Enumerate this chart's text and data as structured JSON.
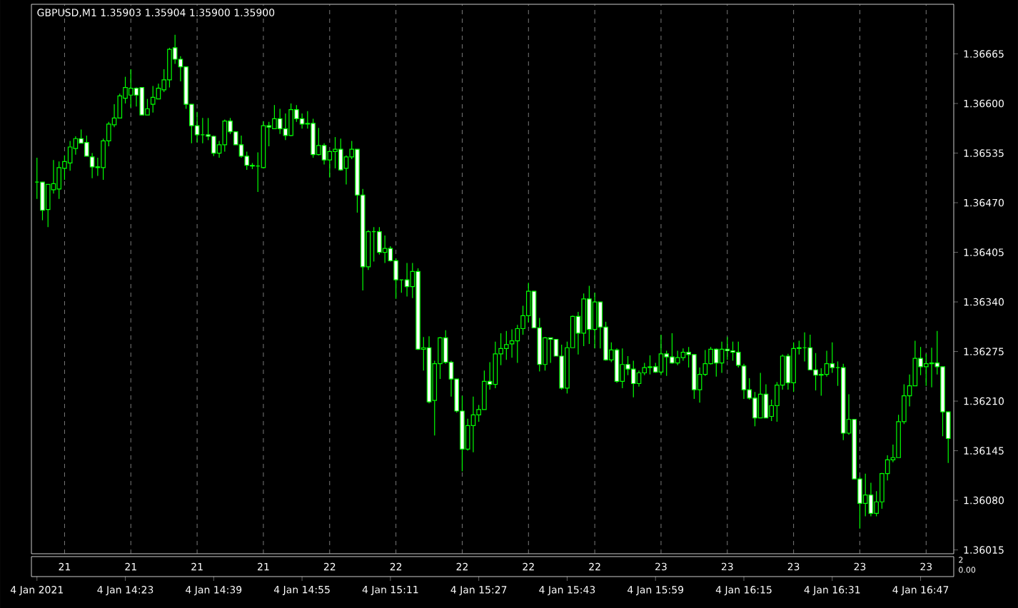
{
  "chart_data": {
    "type": "candlestick",
    "title": "GBPUSD,M1  1.35903 1.35904 1.35900 1.35900",
    "color": "#00ff00",
    "grid": "x",
    "xlim": [
      "2021-01-04T14:06",
      "2021-01-04T16:53"
    ],
    "ylim": [
      1.3601,
      1.3673
    ],
    "yticks": [
      1.36015,
      {
        "value": 1.3608,
        "label": "1.36080"
      },
      1.36145,
      {
        "value": 1.3621,
        "label": "1.36210"
      },
      1.36275,
      {
        "value": 1.3634,
        "label": "1.36340"
      },
      1.36405,
      {
        "value": 1.3647,
        "label": "1.36470"
      },
      1.36535,
      {
        "value": 1.366,
        "label": "1.36600"
      },
      1.36665
    ],
    "xticks": [
      {
        "value": "2021-01-04T14:07",
        "label": "4 Jan 2021"
      },
      {
        "value": "2021-01-04T14:23",
        "label": "4 Jan 14:23"
      },
      {
        "value": "2021-01-04T14:39",
        "label": "4 Jan 14:39"
      },
      {
        "value": "2021-01-04T14:55",
        "label": "4 Jan 14:55"
      },
      {
        "value": "2021-01-04T15:11",
        "label": "4 Jan 15:11"
      },
      {
        "value": "2021-01-04T15:27",
        "label": "4 Jan 15:27"
      },
      {
        "value": "2021-01-04T15:43",
        "label": "4 Jan 15:43"
      },
      {
        "value": "2021-01-04T15:59",
        "label": "4 Jan 15:59"
      },
      {
        "value": "2021-01-04T16:15",
        "label": "4 Jan 16:15"
      },
      {
        "value": "2021-01-04T16:31",
        "label": "4 Jan 16:31"
      },
      {
        "value": "2021-01-04T16:47",
        "label": "4 Jan 16:47"
      }
    ],
    "x2lim": [
      "2021-01-04T14:06",
      "2021-01-04T16:53"
    ],
    "x2ticks": [
      {
        "value": "2021-01-04T14:12",
        "label": "21"
      },
      {
        "value": "2021-01-04T14:24",
        "label": "21"
      },
      {
        "value": "2021-01-04T14:36",
        "label": "21"
      },
      {
        "value": "2021-01-04T14:48",
        "label": "21"
      },
      {
        "value": "2021-01-04T15:00",
        "label": "22"
      },
      {
        "value": "2021-01-04T15:12",
        "label": "22"
      },
      {
        "value": "2021-01-04T15:24",
        "label": "22"
      },
      {
        "value": "2021-01-04T15:36",
        "label": "22"
      },
      {
        "value": "2021-01-04T15:48",
        "label": "22"
      },
      {
        "value": "2021-01-04T16:00",
        "label": "23"
      },
      {
        "value": "2021-01-04T16:12",
        "label": "23"
      },
      {
        "value": "2021-01-04T16:24",
        "label": "23"
      },
      {
        "value": "2021-01-04T16:36",
        "label": "23"
      },
      {
        "value": "2021-01-04T16:48",
        "label": "23"
      }
    ],
    "annotations": [
      "2",
      "0.00"
    ],
    "x": [
      "2021-01-04T14:07",
      "2021-01-04T14:08",
      "2021-01-04T14:09",
      "2021-01-04T14:10",
      "2021-01-04T14:11",
      "2021-01-04T14:12",
      "2021-01-04T14:13",
      "2021-01-04T14:14",
      "2021-01-04T14:15",
      "2021-01-04T14:16",
      "2021-01-04T14:17",
      "2021-01-04T14:18",
      "2021-01-04T14:19",
      "2021-01-04T14:20",
      "2021-01-04T14:21",
      "2021-01-04T14:22",
      "2021-01-04T14:23",
      "2021-01-04T14:24",
      "2021-01-04T14:25",
      "2021-01-04T14:26",
      "2021-01-04T14:27",
      "2021-01-04T14:28",
      "2021-01-04T14:29",
      "2021-01-04T14:30",
      "2021-01-04T14:31",
      "2021-01-04T14:32",
      "2021-01-04T14:33",
      "2021-01-04T14:34",
      "2021-01-04T14:35",
      "2021-01-04T14:36",
      "2021-01-04T14:37",
      "2021-01-04T14:38",
      "2021-01-04T14:39",
      "2021-01-04T14:40",
      "2021-01-04T14:41",
      "2021-01-04T14:42",
      "2021-01-04T14:43",
      "2021-01-04T14:44",
      "2021-01-04T14:45",
      "2021-01-04T14:46",
      "2021-01-04T14:47",
      "2021-01-04T14:48",
      "2021-01-04T14:49",
      "2021-01-04T14:50",
      "2021-01-04T14:51",
      "2021-01-04T14:52",
      "2021-01-04T14:53",
      "2021-01-04T14:54",
      "2021-01-04T14:55",
      "2021-01-04T14:56",
      "2021-01-04T14:57",
      "2021-01-04T14:58",
      "2021-01-04T14:59",
      "2021-01-04T15:00",
      "2021-01-04T15:01",
      "2021-01-04T15:02",
      "2021-01-04T15:03",
      "2021-01-04T15:04",
      "2021-01-04T15:05",
      "2021-01-04T15:06",
      "2021-01-04T15:07",
      "2021-01-04T15:08",
      "2021-01-04T15:09",
      "2021-01-04T15:10",
      "2021-01-04T15:11",
      "2021-01-04T15:12",
      "2021-01-04T15:13",
      "2021-01-04T15:14",
      "2021-01-04T15:15",
      "2021-01-04T15:16",
      "2021-01-04T15:17",
      "2021-01-04T15:18",
      "2021-01-04T15:19",
      "2021-01-04T15:20",
      "2021-01-04T15:21",
      "2021-01-04T15:22",
      "2021-01-04T15:23",
      "2021-01-04T15:24",
      "2021-01-04T15:25",
      "2021-01-04T15:26",
      "2021-01-04T15:27",
      "2021-01-04T15:28",
      "2021-01-04T15:29",
      "2021-01-04T15:30",
      "2021-01-04T15:31",
      "2021-01-04T15:32",
      "2021-01-04T15:33",
      "2021-01-04T15:34",
      "2021-01-04T15:35",
      "2021-01-04T15:36",
      "2021-01-04T15:37",
      "2021-01-04T15:38",
      "2021-01-04T15:39",
      "2021-01-04T15:40",
      "2021-01-04T15:41",
      "2021-01-04T15:42",
      "2021-01-04T15:43",
      "2021-01-04T15:44",
      "2021-01-04T15:45",
      "2021-01-04T15:46",
      "2021-01-04T15:47",
      "2021-01-04T15:48",
      "2021-01-04T15:49",
      "2021-01-04T15:50",
      "2021-01-04T15:51",
      "2021-01-04T15:52",
      "2021-01-04T15:53",
      "2021-01-04T15:54",
      "2021-01-04T15:55",
      "2021-01-04T15:56",
      "2021-01-04T15:57",
      "2021-01-04T15:58",
      "2021-01-04T15:59",
      "2021-01-04T16:00",
      "2021-01-04T16:01",
      "2021-01-04T16:02",
      "2021-01-04T16:03",
      "2021-01-04T16:04",
      "2021-01-04T16:05",
      "2021-01-04T16:06",
      "2021-01-04T16:07",
      "2021-01-04T16:08",
      "2021-01-04T16:09",
      "2021-01-04T16:10",
      "2021-01-04T16:11",
      "2021-01-04T16:12",
      "2021-01-04T16:13",
      "2021-01-04T16:14",
      "2021-01-04T16:15",
      "2021-01-04T16:16",
      "2021-01-04T16:17",
      "2021-01-04T16:18",
      "2021-01-04T16:19",
      "2021-01-04T16:20",
      "2021-01-04T16:21",
      "2021-01-04T16:22",
      "2021-01-04T16:23",
      "2021-01-04T16:24",
      "2021-01-04T16:25",
      "2021-01-04T16:26",
      "2021-01-04T16:27",
      "2021-01-04T16:28",
      "2021-01-04T16:29",
      "2021-01-04T16:30",
      "2021-01-04T16:31",
      "2021-01-04T16:32",
      "2021-01-04T16:33",
      "2021-01-04T16:34",
      "2021-01-04T16:35",
      "2021-01-04T16:36",
      "2021-01-04T16:37",
      "2021-01-04T16:38",
      "2021-01-04T16:39",
      "2021-01-04T16:40",
      "2021-01-04T16:41",
      "2021-01-04T16:42",
      "2021-01-04T16:43",
      "2021-01-04T16:44",
      "2021-01-04T16:45",
      "2021-01-04T16:46",
      "2021-01-04T16:47",
      "2021-01-04T16:48",
      "2021-01-04T16:49",
      "2021-01-04T16:50",
      "2021-01-04T16:51",
      "2021-01-04T16:52"
    ],
    "ohlc": [
      [
        1.36497,
        1.36529,
        1.36475,
        1.36497
      ],
      [
        1.36497,
        1.36497,
        1.36447,
        1.3646
      ],
      [
        1.36461,
        1.36494,
        1.36438,
        1.36494
      ],
      [
        1.36487,
        1.36526,
        1.36482,
        1.36495
      ],
      [
        1.36488,
        1.36524,
        1.36475,
        1.36516
      ],
      [
        1.36515,
        1.36532,
        1.365,
        1.36524
      ],
      [
        1.36522,
        1.36551,
        1.36512,
        1.36543
      ],
      [
        1.36541,
        1.36557,
        1.36533,
        1.36554
      ],
      [
        1.36554,
        1.36566,
        1.36548,
        1.36548
      ],
      [
        1.36549,
        1.36558,
        1.36531,
        1.36531
      ],
      [
        1.3653,
        1.36535,
        1.36502,
        1.36517
      ],
      [
        1.36517,
        1.36529,
        1.36505,
        1.36516
      ],
      [
        1.36516,
        1.36554,
        1.365,
        1.36551
      ],
      [
        1.36551,
        1.36576,
        1.36544,
        1.36573
      ],
      [
        1.36572,
        1.36599,
        1.36569,
        1.36581
      ],
      [
        1.36581,
        1.36613,
        1.36581,
        1.3661
      ],
      [
        1.36607,
        1.36635,
        1.366,
        1.36621
      ],
      [
        1.36611,
        1.36645,
        1.36595,
        1.3662
      ],
      [
        1.3662,
        1.36621,
        1.36596,
        1.36611
      ],
      [
        1.36621,
        1.36621,
        1.36585,
        1.36585
      ],
      [
        1.36585,
        1.36606,
        1.36585,
        1.36593
      ],
      [
        1.36599,
        1.36623,
        1.36588,
        1.36608
      ],
      [
        1.36606,
        1.36626,
        1.36606,
        1.3662
      ],
      [
        1.36618,
        1.36645,
        1.36615,
        1.36631
      ],
      [
        1.36631,
        1.36673,
        1.36621,
        1.36671
      ],
      [
        1.36673,
        1.3669,
        1.36652,
        1.36658
      ],
      [
        1.36658,
        1.36662,
        1.36629,
        1.36648
      ],
      [
        1.36648,
        1.36648,
        1.36593,
        1.36599
      ],
      [
        1.36599,
        1.36599,
        1.36548,
        1.36571
      ],
      [
        1.36571,
        1.36589,
        1.36549,
        1.36559
      ],
      [
        1.36559,
        1.36581,
        1.36548,
        1.36559
      ],
      [
        1.36559,
        1.36581,
        1.36552,
        1.36557
      ],
      [
        1.36557,
        1.36558,
        1.36531,
        1.36535
      ],
      [
        1.36535,
        1.36551,
        1.36529,
        1.36546
      ],
      [
        1.36546,
        1.36579,
        1.36537,
        1.36577
      ],
      [
        1.36577,
        1.36581,
        1.3656,
        1.36563
      ],
      [
        1.36563,
        1.36563,
        1.36546,
        1.36546
      ],
      [
        1.36546,
        1.36558,
        1.36529,
        1.36531
      ],
      [
        1.36531,
        1.36537,
        1.36513,
        1.36519
      ],
      [
        1.36519,
        1.36522,
        1.36514,
        1.36518
      ],
      [
        1.36518,
        1.36536,
        1.36484,
        1.36518
      ],
      [
        1.36516,
        1.36577,
        1.36515,
        1.36571
      ],
      [
        1.36571,
        1.36576,
        1.36544,
        1.36569
      ],
      [
        1.36567,
        1.36598,
        1.36567,
        1.3658
      ],
      [
        1.3658,
        1.36593,
        1.3656,
        1.36567
      ],
      [
        1.36567,
        1.36587,
        1.36552,
        1.36558
      ],
      [
        1.36558,
        1.366,
        1.36557,
        1.36592
      ],
      [
        1.36592,
        1.36598,
        1.36576,
        1.3658
      ],
      [
        1.3658,
        1.36587,
        1.36567,
        1.36573
      ],
      [
        1.36573,
        1.3659,
        1.36567,
        1.36574
      ],
      [
        1.36574,
        1.3658,
        1.36529,
        1.36533
      ],
      [
        1.36533,
        1.36568,
        1.36532,
        1.36545
      ],
      [
        1.36545,
        1.36548,
        1.3652,
        1.36526
      ],
      [
        1.36526,
        1.36538,
        1.36503,
        1.36537
      ],
      [
        1.36537,
        1.36556,
        1.36515,
        1.3654
      ],
      [
        1.3654,
        1.36554,
        1.36512,
        1.36513
      ],
      [
        1.36515,
        1.36532,
        1.36494,
        1.3653
      ],
      [
        1.3653,
        1.36551,
        1.36527,
        1.3654
      ],
      [
        1.3654,
        1.3654,
        1.36457,
        1.3648
      ],
      [
        1.3648,
        1.36488,
        1.36355,
        1.36386
      ],
      [
        1.36386,
        1.36434,
        1.36382,
        1.36432
      ],
      [
        1.36432,
        1.36438,
        1.36393,
        1.36432
      ],
      [
        1.36432,
        1.36438,
        1.36402,
        1.36405
      ],
      [
        1.36405,
        1.36427,
        1.36391,
        1.3641
      ],
      [
        1.3641,
        1.36413,
        1.36393,
        1.36394
      ],
      [
        1.36394,
        1.36397,
        1.36344,
        1.36369
      ],
      [
        1.36369,
        1.36369,
        1.36352,
        1.36369
      ],
      [
        1.36369,
        1.36391,
        1.36347,
        1.3636
      ],
      [
        1.3636,
        1.36391,
        1.36345,
        1.3638
      ],
      [
        1.3638,
        1.36384,
        1.36277,
        1.36278
      ],
      [
        1.36278,
        1.36294,
        1.3625,
        1.3628
      ],
      [
        1.3628,
        1.36295,
        1.36207,
        1.36209
      ],
      [
        1.36211,
        1.36263,
        1.36165,
        1.36259
      ],
      [
        1.36259,
        1.36294,
        1.36239,
        1.36293
      ],
      [
        1.36293,
        1.36303,
        1.36259,
        1.36261
      ],
      [
        1.36261,
        1.36263,
        1.36216,
        1.36239
      ],
      [
        1.36239,
        1.36239,
        1.36195,
        1.36197
      ],
      [
        1.36197,
        1.36217,
        1.36118,
        1.36147
      ],
      [
        1.36147,
        1.36187,
        1.36145,
        1.36178
      ],
      [
        1.36178,
        1.36216,
        1.36143,
        1.36192
      ],
      [
        1.36192,
        1.36205,
        1.36183,
        1.36199
      ],
      [
        1.36199,
        1.3625,
        1.36199,
        1.36236
      ],
      [
        1.36236,
        1.36261,
        1.36225,
        1.36232
      ],
      [
        1.36232,
        1.36288,
        1.36227,
        1.36272
      ],
      [
        1.36272,
        1.36299,
        1.36257,
        1.36279
      ],
      [
        1.36279,
        1.36302,
        1.36264,
        1.36284
      ],
      [
        1.36285,
        1.36304,
        1.36267,
        1.36289
      ],
      [
        1.36289,
        1.3631,
        1.3626,
        1.36305
      ],
      [
        1.36305,
        1.36335,
        1.36297,
        1.36322
      ],
      [
        1.36322,
        1.36365,
        1.36313,
        1.36354
      ],
      [
        1.36354,
        1.36354,
        1.36306,
        1.36306
      ],
      [
        1.36306,
        1.36319,
        1.36249,
        1.36258
      ],
      [
        1.36258,
        1.36294,
        1.3625,
        1.36293
      ],
      [
        1.36293,
        1.36293,
        1.3626,
        1.36291
      ],
      [
        1.36291,
        1.36291,
        1.36269,
        1.36269
      ],
      [
        1.36269,
        1.36284,
        1.36225,
        1.36227
      ],
      [
        1.36227,
        1.36288,
        1.3622,
        1.3628
      ],
      [
        1.3628,
        1.36322,
        1.3628,
        1.36321
      ],
      [
        1.36321,
        1.36327,
        1.36271,
        1.36299
      ],
      [
        1.36299,
        1.36351,
        1.36282,
        1.36344
      ],
      [
        1.36344,
        1.36361,
        1.36285,
        1.36304
      ],
      [
        1.36304,
        1.36352,
        1.36279,
        1.3634
      ],
      [
        1.3634,
        1.3634,
        1.36279,
        1.36307
      ],
      [
        1.36307,
        1.36314,
        1.36263,
        1.36264
      ],
      [
        1.36264,
        1.36287,
        1.36261,
        1.36277
      ],
      [
        1.36277,
        1.36279,
        1.36234,
        1.36236
      ],
      [
        1.36236,
        1.36279,
        1.36227,
        1.36258
      ],
      [
        1.36258,
        1.36269,
        1.36244,
        1.36252
      ],
      [
        1.36252,
        1.36263,
        1.36215,
        1.36233
      ],
      [
        1.36233,
        1.3625,
        1.36229,
        1.36247
      ],
      [
        1.36247,
        1.3626,
        1.36244,
        1.36254
      ],
      [
        1.36254,
        1.3627,
        1.36245,
        1.36255
      ],
      [
        1.36255,
        1.3626,
        1.36247,
        1.36248
      ],
      [
        1.36248,
        1.36297,
        1.36244,
        1.36272
      ],
      [
        1.36272,
        1.36276,
        1.36243,
        1.36268
      ],
      [
        1.36268,
        1.36299,
        1.36259,
        1.3626
      ],
      [
        1.3626,
        1.36276,
        1.36257,
        1.36267
      ],
      [
        1.36267,
        1.36279,
        1.36263,
        1.36274
      ],
      [
        1.36274,
        1.36281,
        1.36254,
        1.36271
      ],
      [
        1.36271,
        1.36271,
        1.36213,
        1.36225
      ],
      [
        1.36225,
        1.36254,
        1.36208,
        1.36245
      ],
      [
        1.36245,
        1.36277,
        1.36243,
        1.36259
      ],
      [
        1.36259,
        1.36281,
        1.36258,
        1.36278
      ],
      [
        1.36278,
        1.36279,
        1.36242,
        1.3626
      ],
      [
        1.3626,
        1.36288,
        1.36247,
        1.36278
      ],
      [
        1.36278,
        1.36294,
        1.36264,
        1.36276
      ],
      [
        1.36276,
        1.36288,
        1.36263,
        1.36274
      ],
      [
        1.36274,
        1.36288,
        1.36254,
        1.36257
      ],
      [
        1.36256,
        1.36259,
        1.36213,
        1.36225
      ],
      [
        1.36225,
        1.3624,
        1.36212,
        1.36214
      ],
      [
        1.36214,
        1.36222,
        1.36177,
        1.36188
      ],
      [
        1.36188,
        1.36247,
        1.36188,
        1.36219
      ],
      [
        1.36219,
        1.36232,
        1.36188,
        1.36188
      ],
      [
        1.3619,
        1.36212,
        1.36184,
        1.36204
      ],
      [
        1.36204,
        1.36235,
        1.36183,
        1.36231
      ],
      [
        1.36231,
        1.36271,
        1.36225,
        1.36269
      ],
      [
        1.36269,
        1.36272,
        1.36225,
        1.36234
      ],
      [
        1.36234,
        1.36287,
        1.36222,
        1.36279
      ],
      [
        1.36279,
        1.36289,
        1.36271,
        1.3628
      ],
      [
        1.3628,
        1.363,
        1.36262,
        1.3628
      ],
      [
        1.3628,
        1.36297,
        1.36251,
        1.36251
      ],
      [
        1.36251,
        1.36273,
        1.36224,
        1.36244
      ],
      [
        1.36244,
        1.36253,
        1.36217,
        1.36245
      ],
      [
        1.36245,
        1.36276,
        1.36242,
        1.36259
      ],
      [
        1.36259,
        1.36287,
        1.36247,
        1.36254
      ],
      [
        1.36254,
        1.36262,
        1.3623,
        1.36254
      ],
      [
        1.36254,
        1.36259,
        1.36159,
        1.36168
      ],
      [
        1.36168,
        1.36219,
        1.36166,
        1.36186
      ],
      [
        1.36186,
        1.36186,
        1.36108,
        1.36108
      ],
      [
        1.36108,
        1.36111,
        1.36043,
        1.36076
      ],
      [
        1.36076,
        1.36115,
        1.36059,
        1.36087
      ],
      [
        1.36087,
        1.36103,
        1.36059,
        1.36063
      ],
      [
        1.36063,
        1.36092,
        1.36059,
        1.36078
      ],
      [
        1.36078,
        1.36116,
        1.36069,
        1.36115
      ],
      [
        1.36115,
        1.36139,
        1.36106,
        1.36133
      ],
      [
        1.36133,
        1.36153,
        1.3613,
        1.36136
      ],
      [
        1.36136,
        1.36192,
        1.36136,
        1.36183
      ],
      [
        1.36183,
        1.36232,
        1.3618,
        1.36217
      ],
      [
        1.36217,
        1.36245,
        1.36203,
        1.3623
      ],
      [
        1.3623,
        1.36289,
        1.3623,
        1.36266
      ],
      [
        1.36266,
        1.36281,
        1.36244,
        1.36255
      ],
      [
        1.36255,
        1.36272,
        1.3623,
        1.36259
      ],
      [
        1.36259,
        1.3628,
        1.36228,
        1.3626
      ],
      [
        1.3626,
        1.36302,
        1.36245,
        1.36255
      ],
      [
        1.36255,
        1.36255,
        1.36164,
        1.36196
      ],
      [
        1.36196,
        1.36196,
        1.36129,
        1.36161
      ]
    ]
  }
}
